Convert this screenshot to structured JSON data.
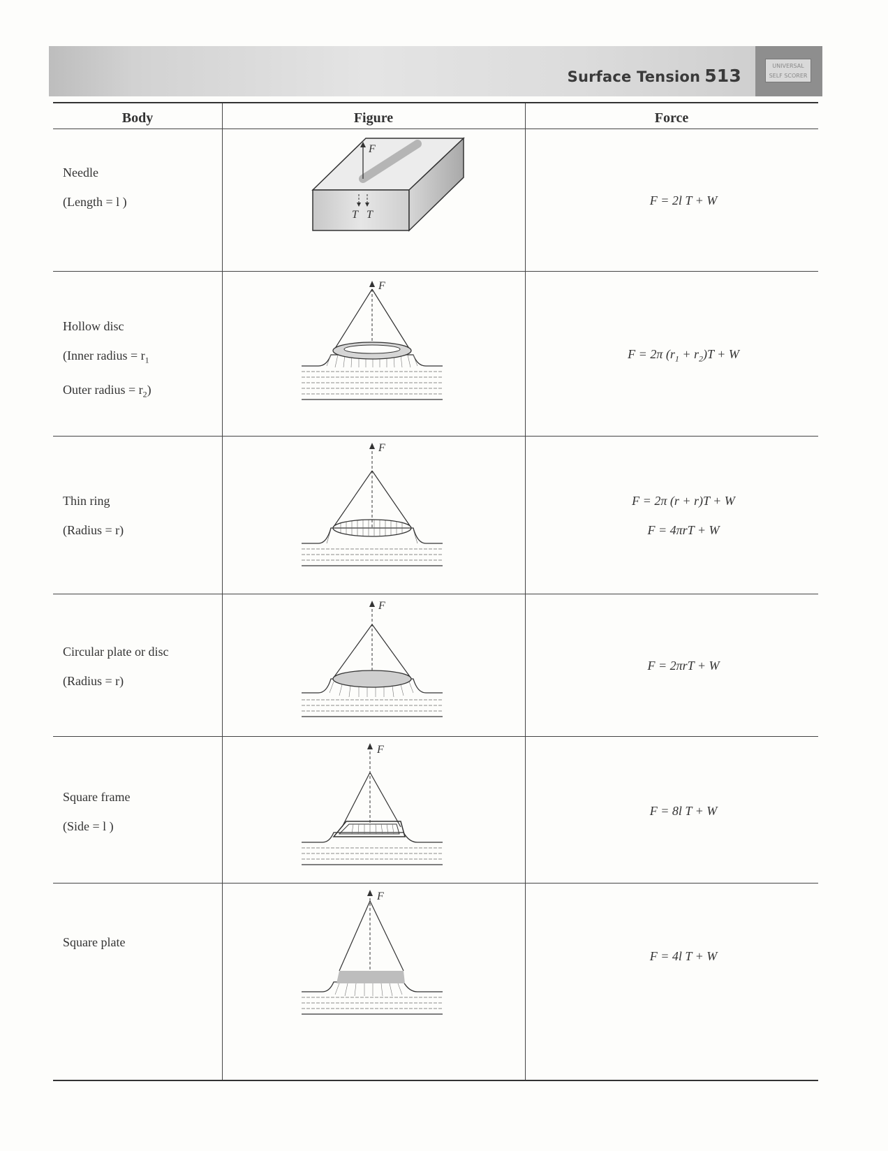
{
  "header": {
    "title": "Surface Tension",
    "page_number": "513",
    "badge_line1": "UNIVERSAL",
    "badge_line2": "SELF SCORER"
  },
  "table": {
    "col_body": "Body",
    "col_figure": "Figure",
    "col_force": "Force",
    "rows": [
      {
        "body": [
          "Needle",
          "(Length = l )"
        ],
        "force": [
          "F = 2l T + W"
        ],
        "fig_labels": {
          "f": "F",
          "t1": "T",
          "t2": "T"
        }
      },
      {
        "body": [
          "Hollow disc",
          "(Inner radius = r",
          "Outer radius = r"
        ],
        "body_subs": [
          "1",
          "2",
          ")"
        ],
        "force": [
          "F = 2π (r",
          " + r",
          ")T + W"
        ],
        "force_subs": [
          "1",
          "2"
        ],
        "fig_labels": {
          "f": "F"
        }
      },
      {
        "body": [
          "Thin ring",
          "(Radius = r)"
        ],
        "force": [
          "F = 2π (r + r)T + W",
          "F = 4πrT + W"
        ],
        "fig_labels": {
          "f": "F"
        }
      },
      {
        "body": [
          "Circular plate or disc",
          "(Radius = r)"
        ],
        "force": [
          "F = 2πrT + W"
        ],
        "fig_labels": {
          "f": "F"
        }
      },
      {
        "body": [
          "Square frame",
          "(Side = l )"
        ],
        "force": [
          "F = 8l T + W"
        ],
        "fig_labels": {
          "f": "F"
        }
      },
      {
        "body": [
          "Square plate"
        ],
        "force": [
          "F = 4l T + W"
        ],
        "fig_labels": {
          "f": "F"
        }
      }
    ]
  }
}
